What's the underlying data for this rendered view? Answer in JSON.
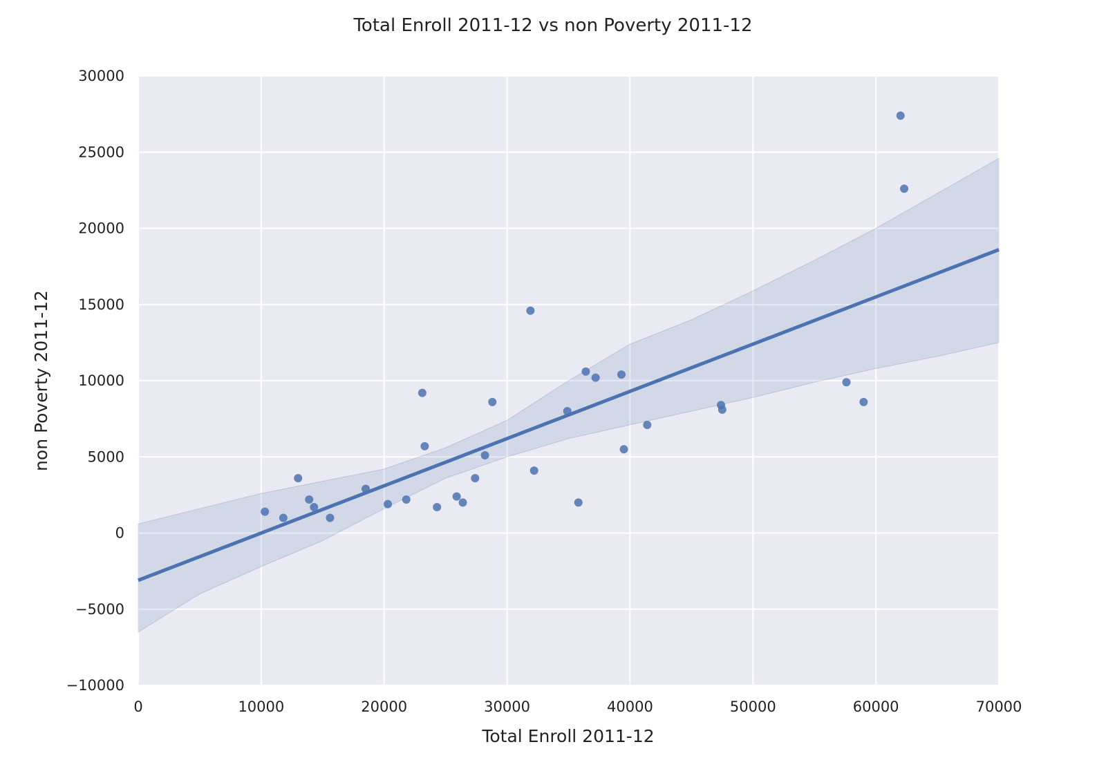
{
  "chart_data": {
    "type": "scatter",
    "title": "Total Enroll 2011-12 vs non Poverty 2011-12",
    "xlabel": "Total Enroll 2011-12",
    "ylabel": "non Poverty 2011-12",
    "xlim": [
      0,
      70000
    ],
    "ylim": [
      -10000,
      30000
    ],
    "x_ticks": [
      0,
      10000,
      20000,
      30000,
      40000,
      50000,
      60000,
      70000
    ],
    "y_ticks": [
      -10000,
      -5000,
      0,
      5000,
      10000,
      15000,
      20000,
      25000,
      30000
    ],
    "x_tick_labels": [
      "0",
      "10000",
      "20000",
      "30000",
      "40000",
      "50000",
      "60000",
      "70000"
    ],
    "y_tick_labels": [
      "−10000",
      "−5000",
      "0",
      "5000",
      "10000",
      "15000",
      "20000",
      "25000",
      "30000"
    ],
    "grid": true,
    "legend": "none",
    "colors": {
      "background": "#eaeaf2",
      "grid": "#ffffff",
      "points": "#4c72b0",
      "line": "#4c72b0",
      "band": "#4c72b0"
    },
    "points": [
      {
        "x": 10300,
        "y": 1400
      },
      {
        "x": 11800,
        "y": 1000
      },
      {
        "x": 13000,
        "y": 3600
      },
      {
        "x": 13900,
        "y": 2200
      },
      {
        "x": 14300,
        "y": 1700
      },
      {
        "x": 15600,
        "y": 1000
      },
      {
        "x": 18500,
        "y": 2900
      },
      {
        "x": 20300,
        "y": 1900
      },
      {
        "x": 21800,
        "y": 2200
      },
      {
        "x": 23100,
        "y": 9200
      },
      {
        "x": 23300,
        "y": 5700
      },
      {
        "x": 24300,
        "y": 1700
      },
      {
        "x": 25900,
        "y": 2400
      },
      {
        "x": 26400,
        "y": 2000
      },
      {
        "x": 27400,
        "y": 3600
      },
      {
        "x": 28200,
        "y": 5100
      },
      {
        "x": 28800,
        "y": 8600
      },
      {
        "x": 31900,
        "y": 14600
      },
      {
        "x": 32200,
        "y": 4100
      },
      {
        "x": 34900,
        "y": 8000
      },
      {
        "x": 35800,
        "y": 2000
      },
      {
        "x": 36400,
        "y": 10600
      },
      {
        "x": 37200,
        "y": 10200
      },
      {
        "x": 39300,
        "y": 10400
      },
      {
        "x": 39500,
        "y": 5500
      },
      {
        "x": 41400,
        "y": 7100
      },
      {
        "x": 47400,
        "y": 8400
      },
      {
        "x": 47500,
        "y": 8100
      },
      {
        "x": 57600,
        "y": 9900
      },
      {
        "x": 59000,
        "y": 8600
      },
      {
        "x": 62000,
        "y": 27400
      },
      {
        "x": 62300,
        "y": 22600
      }
    ],
    "regression_line": [
      {
        "x": 0,
        "y": -3100
      },
      {
        "x": 70000,
        "y": 18600
      }
    ],
    "confidence_band": {
      "x": [
        0,
        5000,
        10000,
        15000,
        20000,
        25000,
        30000,
        35000,
        40000,
        45000,
        50000,
        55000,
        60000,
        65000,
        70000
      ],
      "upper": [
        600,
        1600,
        2600,
        3400,
        4200,
        5600,
        7400,
        10000,
        12400,
        14000,
        15900,
        17900,
        20000,
        22300,
        24600
      ],
      "lower": [
        -6500,
        -4000,
        -2200,
        -500,
        1600,
        3600,
        5000,
        6200,
        7100,
        8000,
        8900,
        9900,
        10800,
        11600,
        12500
      ]
    }
  }
}
